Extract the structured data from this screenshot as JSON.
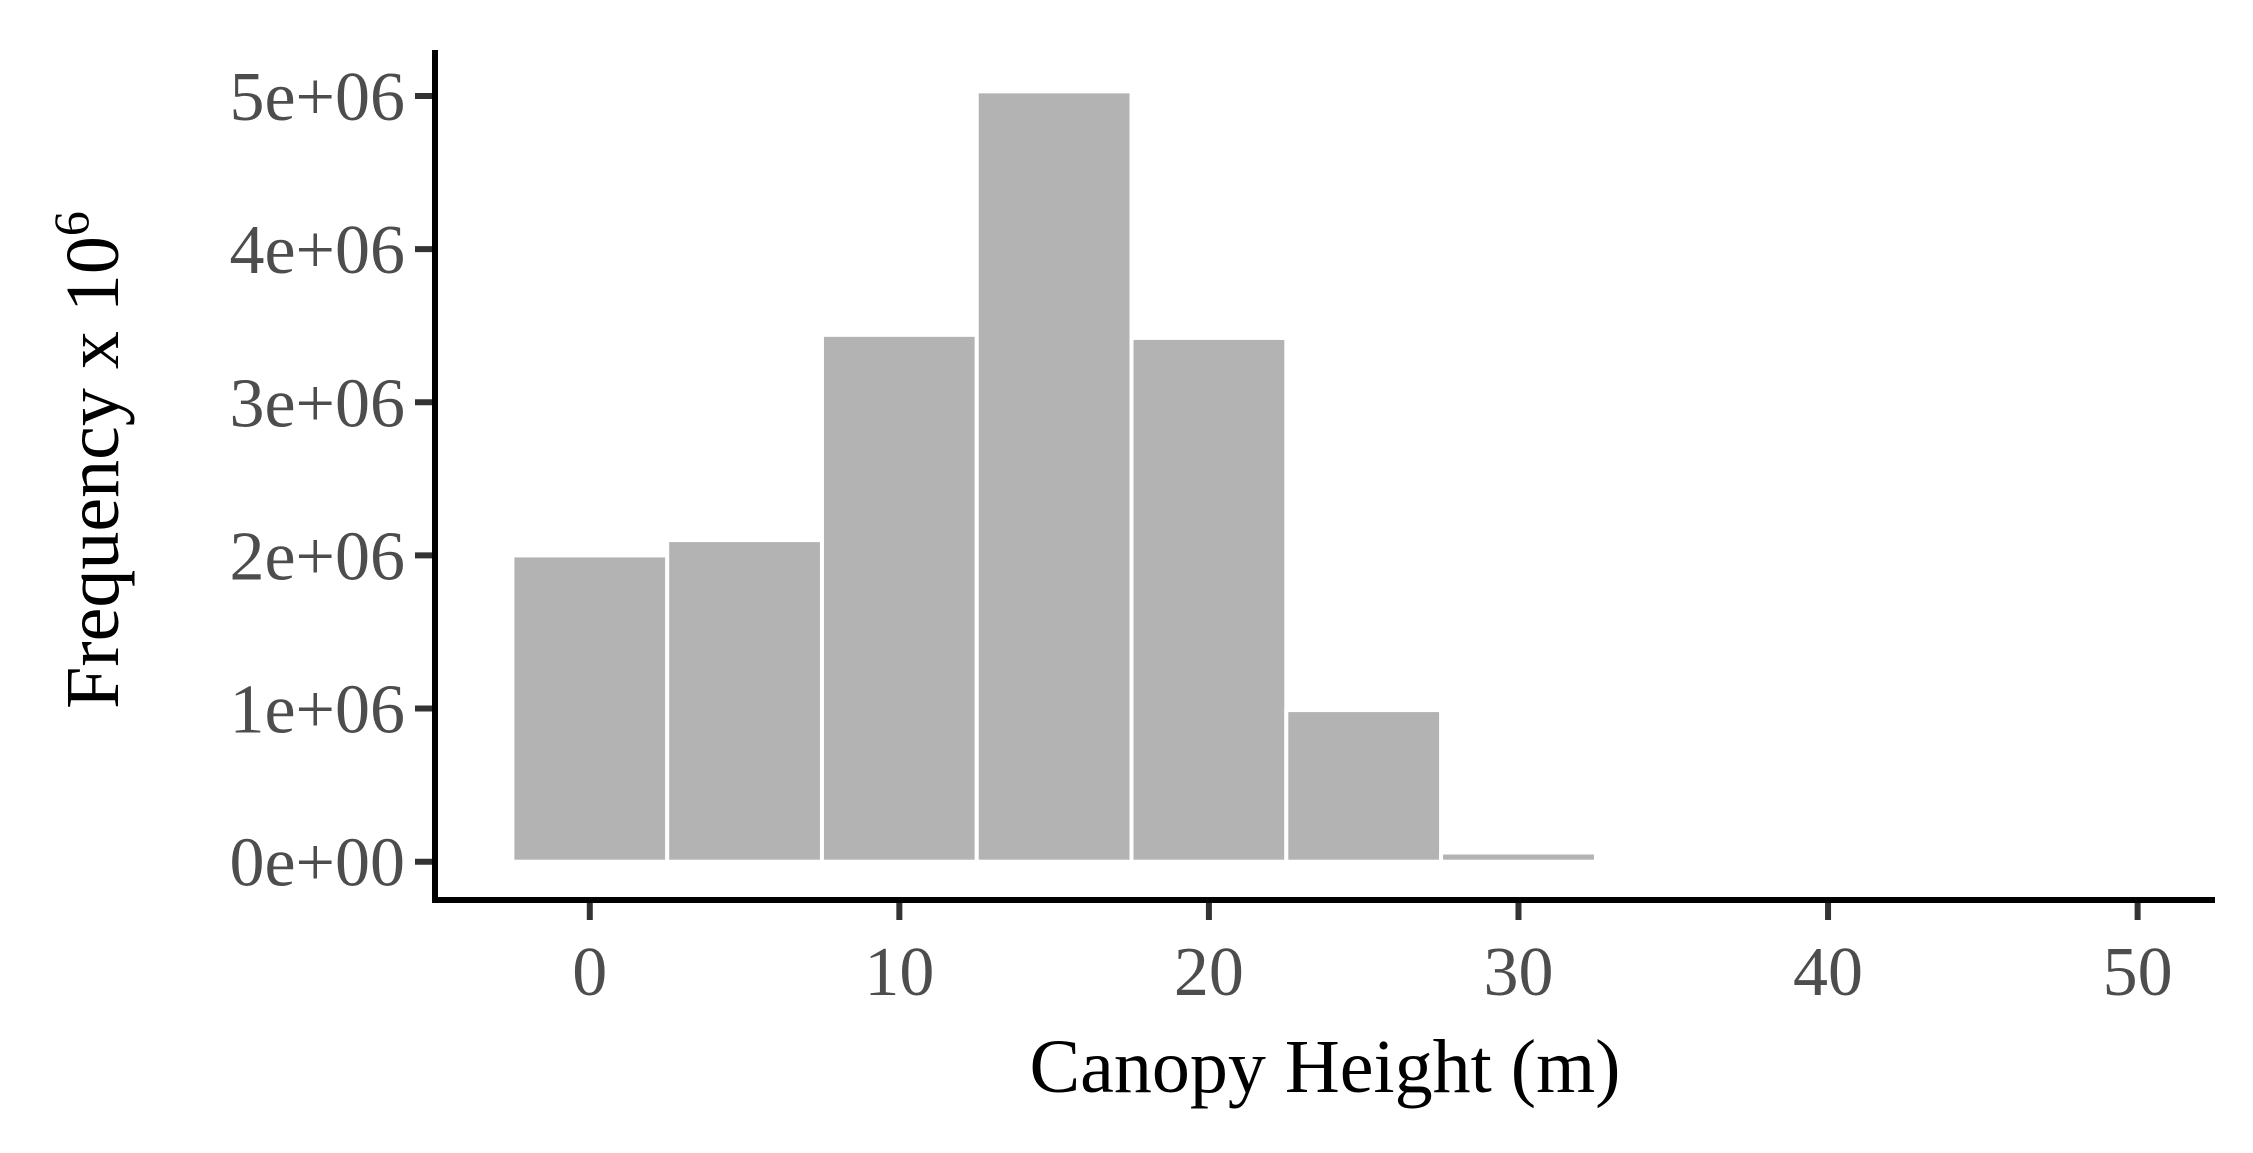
{
  "chart_data": {
    "type": "bar",
    "title": "",
    "xlabel": "Canopy Height (m)",
    "ylabel": "Frequency x 10",
    "ylabel_superscript": "6",
    "bars": [
      {
        "x0": -2.5,
        "x1": 2.5,
        "value": 2000000
      },
      {
        "x0": 2.5,
        "x1": 7.5,
        "value": 2100000
      },
      {
        "x0": 7.5,
        "x1": 12.5,
        "value": 3440000
      },
      {
        "x0": 12.5,
        "x1": 17.5,
        "value": 5030000
      },
      {
        "x0": 17.5,
        "x1": 22.5,
        "value": 3420000
      },
      {
        "x0": 22.5,
        "x1": 27.5,
        "value": 990000
      },
      {
        "x0": 27.5,
        "x1": 32.5,
        "value": 60000
      }
    ],
    "xlim": [
      -5,
      52.5
    ],
    "ylim": [
      -250000,
      5300000
    ],
    "x_ticks": [
      0,
      10,
      20,
      30,
      40,
      50
    ],
    "x_tick_labels": [
      "0",
      "10",
      "20",
      "30",
      "40",
      "50"
    ],
    "y_ticks": [
      0,
      1000000,
      2000000,
      3000000,
      4000000,
      5000000
    ],
    "y_tick_labels": [
      "0e+00",
      "1e+06",
      "2e+06",
      "3e+06",
      "4e+06",
      "5e+06"
    ],
    "grid": false,
    "legend": "none",
    "colors": {
      "bar": "#b3b3b3",
      "bar_outline": "#ffffff",
      "axis": "#000000",
      "tick": "#333333",
      "tick_label": "#4d4d4d"
    }
  }
}
